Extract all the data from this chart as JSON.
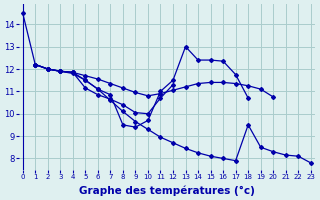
{
  "bg_color": "#dff0f0",
  "grid_color": "#aacccc",
  "line_color": "#0000aa",
  "xlabel": "Graphe des températures (°c)",
  "xlabel_fontsize": 7.5,
  "ylim": [
    7.5,
    14.9
  ],
  "xlim": [
    -0.3,
    23.3
  ],
  "yticks": [
    8,
    9,
    10,
    11,
    12,
    13,
    14
  ],
  "xticks": [
    0,
    1,
    2,
    3,
    4,
    5,
    6,
    7,
    8,
    9,
    10,
    11,
    12,
    13,
    14,
    15,
    16,
    17,
    18,
    19,
    20,
    21,
    22,
    23
  ],
  "s1_x": [
    0,
    1,
    2,
    3,
    4,
    5,
    6,
    7,
    8,
    9,
    10,
    11,
    12,
    13,
    14,
    15,
    16,
    17,
    18
  ],
  "s1_y": [
    14.5,
    12.2,
    12.0,
    11.9,
    11.85,
    11.5,
    11.1,
    10.85,
    9.5,
    9.4,
    9.7,
    11.0,
    11.5,
    13.0,
    12.4,
    12.4,
    12.35,
    11.75,
    10.7
  ],
  "s2_x": [
    1,
    2,
    3,
    4,
    5,
    6,
    7,
    8,
    9,
    10,
    11,
    12,
    13,
    14,
    15,
    16,
    17,
    18,
    19,
    20
  ],
  "s2_y": [
    12.2,
    12.0,
    11.9,
    11.85,
    11.7,
    11.55,
    11.35,
    11.15,
    10.95,
    10.8,
    10.9,
    11.05,
    11.2,
    11.35,
    11.4,
    11.4,
    11.35,
    11.25,
    11.1,
    10.75
  ],
  "s3_x": [
    1,
    2,
    3,
    4,
    5,
    6,
    7,
    8,
    9,
    10,
    11,
    12
  ],
  "s3_y": [
    12.2,
    12.0,
    11.9,
    11.85,
    11.15,
    10.85,
    10.65,
    10.4,
    10.05,
    10.0,
    10.7,
    11.3
  ],
  "s4_x": [
    1,
    2,
    3,
    4,
    5,
    6,
    7,
    8,
    9,
    10,
    11,
    12,
    13,
    14,
    15,
    16,
    17,
    18,
    19,
    20,
    21,
    22,
    23
  ],
  "s4_y": [
    12.2,
    12.0,
    11.9,
    11.8,
    11.5,
    11.1,
    10.6,
    10.1,
    9.65,
    9.3,
    8.95,
    8.7,
    8.45,
    8.25,
    8.1,
    8.0,
    7.9,
    9.5,
    8.5,
    8.3,
    8.15,
    8.1,
    7.8
  ]
}
